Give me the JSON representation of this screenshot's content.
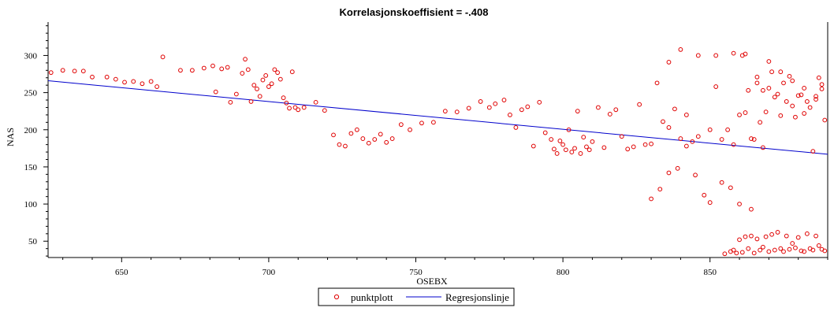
{
  "chart_data": {
    "type": "scatter",
    "title": "Korrelasjonskoeffisient =  -.408",
    "xlabel": "OSEBX",
    "ylabel": "NAS",
    "xlim": [
      625,
      890
    ],
    "ylim": [
      28,
      345
    ],
    "x_ticks": [
      650,
      700,
      750,
      800,
      850
    ],
    "y_ticks": [
      50,
      100,
      150,
      200,
      250,
      300
    ],
    "grid": false,
    "legend_position": "bottom-center",
    "colors": {
      "points": "#e00000",
      "line": "#0000cc",
      "axis": "#000000"
    },
    "series": [
      {
        "name": "punktplott",
        "kind": "scatter",
        "points": [
          [
            626,
            277
          ],
          [
            630,
            280
          ],
          [
            634,
            279
          ],
          [
            637,
            279
          ],
          [
            640,
            271
          ],
          [
            645,
            271
          ],
          [
            648,
            268
          ],
          [
            651,
            264
          ],
          [
            654,
            265
          ],
          [
            657,
            262
          ],
          [
            660,
            265
          ],
          [
            662,
            258
          ],
          [
            664,
            298
          ],
          [
            670,
            280
          ],
          [
            674,
            280
          ],
          [
            678,
            283
          ],
          [
            681,
            286
          ],
          [
            682,
            251
          ],
          [
            684,
            282
          ],
          [
            686,
            284
          ],
          [
            687,
            237
          ],
          [
            689,
            248
          ],
          [
            691,
            276
          ],
          [
            692,
            295
          ],
          [
            693,
            281
          ],
          [
            694,
            238
          ],
          [
            695,
            260
          ],
          [
            696,
            255
          ],
          [
            697,
            245
          ],
          [
            698,
            267
          ],
          [
            699,
            273
          ],
          [
            700,
            258
          ],
          [
            701,
            262
          ],
          [
            702,
            281
          ],
          [
            703,
            277
          ],
          [
            704,
            268
          ],
          [
            705,
            243
          ],
          [
            706,
            236
          ],
          [
            707,
            229
          ],
          [
            708,
            278
          ],
          [
            709,
            230
          ],
          [
            710,
            227
          ],
          [
            712,
            230
          ],
          [
            716,
            237
          ],
          [
            719,
            226
          ],
          [
            722,
            193
          ],
          [
            724,
            180
          ],
          [
            726,
            178
          ],
          [
            728,
            195
          ],
          [
            730,
            200
          ],
          [
            732,
            188
          ],
          [
            734,
            182
          ],
          [
            736,
            187
          ],
          [
            738,
            194
          ],
          [
            740,
            183
          ],
          [
            742,
            188
          ],
          [
            745,
            207
          ],
          [
            748,
            200
          ],
          [
            752,
            209
          ],
          [
            756,
            210
          ],
          [
            760,
            225
          ],
          [
            764,
            224
          ],
          [
            768,
            229
          ],
          [
            772,
            238
          ],
          [
            775,
            230
          ],
          [
            777,
            235
          ],
          [
            780,
            240
          ],
          [
            782,
            220
          ],
          [
            784,
            203
          ],
          [
            786,
            227
          ],
          [
            788,
            231
          ],
          [
            790,
            178
          ],
          [
            792,
            237
          ],
          [
            794,
            196
          ],
          [
            796,
            187
          ],
          [
            797,
            174
          ],
          [
            798,
            168
          ],
          [
            799,
            185
          ],
          [
            800,
            180
          ],
          [
            801,
            173
          ],
          [
            802,
            200
          ],
          [
            803,
            170
          ],
          [
            804,
            175
          ],
          [
            805,
            225
          ],
          [
            806,
            168
          ],
          [
            807,
            190
          ],
          [
            808,
            177
          ],
          [
            809,
            173
          ],
          [
            810,
            184
          ],
          [
            812,
            230
          ],
          [
            814,
            176
          ],
          [
            816,
            221
          ],
          [
            818,
            227
          ],
          [
            820,
            191
          ],
          [
            822,
            174
          ],
          [
            824,
            177
          ],
          [
            826,
            234
          ],
          [
            828,
            180
          ],
          [
            830,
            181
          ],
          [
            832,
            263
          ],
          [
            834,
            211
          ],
          [
            836,
            203
          ],
          [
            838,
            228
          ],
          [
            840,
            188
          ],
          [
            842,
            220
          ],
          [
            844,
            184
          ],
          [
            846,
            191
          ],
          [
            848,
            112
          ],
          [
            850,
            200
          ],
          [
            852,
            258
          ],
          [
            854,
            187
          ],
          [
            856,
            200
          ],
          [
            858,
            180
          ],
          [
            860,
            220
          ],
          [
            861,
            300
          ],
          [
            862,
            223
          ],
          [
            863,
            253
          ],
          [
            864,
            188
          ],
          [
            865,
            187
          ],
          [
            866,
            263
          ],
          [
            867,
            210
          ],
          [
            868,
            253
          ],
          [
            869,
            224
          ],
          [
            870,
            256
          ],
          [
            871,
            278
          ],
          [
            872,
            244
          ],
          [
            873,
            248
          ],
          [
            874,
            219
          ],
          [
            875,
            263
          ],
          [
            876,
            238
          ],
          [
            877,
            272
          ],
          [
            878,
            232
          ],
          [
            879,
            217
          ],
          [
            880,
            246
          ],
          [
            881,
            247
          ],
          [
            882,
            222
          ],
          [
            883,
            238
          ],
          [
            884,
            230
          ],
          [
            885,
            171
          ],
          [
            886,
            241
          ],
          [
            887,
            270
          ],
          [
            888,
            255
          ],
          [
            889,
            213
          ],
          [
            836,
            291
          ],
          [
            840,
            308
          ],
          [
            846,
            300
          ],
          [
            852,
            300
          ],
          [
            858,
            303
          ],
          [
            862,
            302
          ],
          [
            866,
            271
          ],
          [
            870,
            292
          ],
          [
            874,
            278
          ],
          [
            878,
            266
          ],
          [
            882,
            256
          ],
          [
            886,
            245
          ],
          [
            888,
            261
          ],
          [
            830,
            107
          ],
          [
            833,
            120
          ],
          [
            836,
            142
          ],
          [
            839,
            148
          ],
          [
            842,
            178
          ],
          [
            845,
            139
          ],
          [
            850,
            102
          ],
          [
            854,
            129
          ],
          [
            857,
            122
          ],
          [
            860,
            100
          ],
          [
            864,
            93
          ],
          [
            868,
            176
          ],
          [
            855,
            33
          ],
          [
            857,
            36
          ],
          [
            858,
            38
          ],
          [
            859,
            34
          ],
          [
            860,
            52
          ],
          [
            861,
            35
          ],
          [
            862,
            56
          ],
          [
            863,
            40
          ],
          [
            864,
            57
          ],
          [
            865,
            34
          ],
          [
            866,
            53
          ],
          [
            867,
            38
          ],
          [
            868,
            42
          ],
          [
            869,
            56
          ],
          [
            870,
            36
          ],
          [
            871,
            59
          ],
          [
            872,
            38
          ],
          [
            873,
            62
          ],
          [
            874,
            40
          ],
          [
            875,
            36
          ],
          [
            876,
            57
          ],
          [
            877,
            39
          ],
          [
            878,
            47
          ],
          [
            879,
            41
          ],
          [
            880,
            55
          ],
          [
            881,
            37
          ],
          [
            882,
            36
          ],
          [
            883,
            60
          ],
          [
            884,
            40
          ],
          [
            885,
            38
          ],
          [
            886,
            57
          ],
          [
            887,
            44
          ],
          [
            888,
            39
          ],
          [
            889,
            37
          ]
        ]
      },
      {
        "name": "Regresjonslinje",
        "kind": "line",
        "points": [
          [
            625,
            266
          ],
          [
            890,
            167
          ]
        ]
      }
    ]
  }
}
